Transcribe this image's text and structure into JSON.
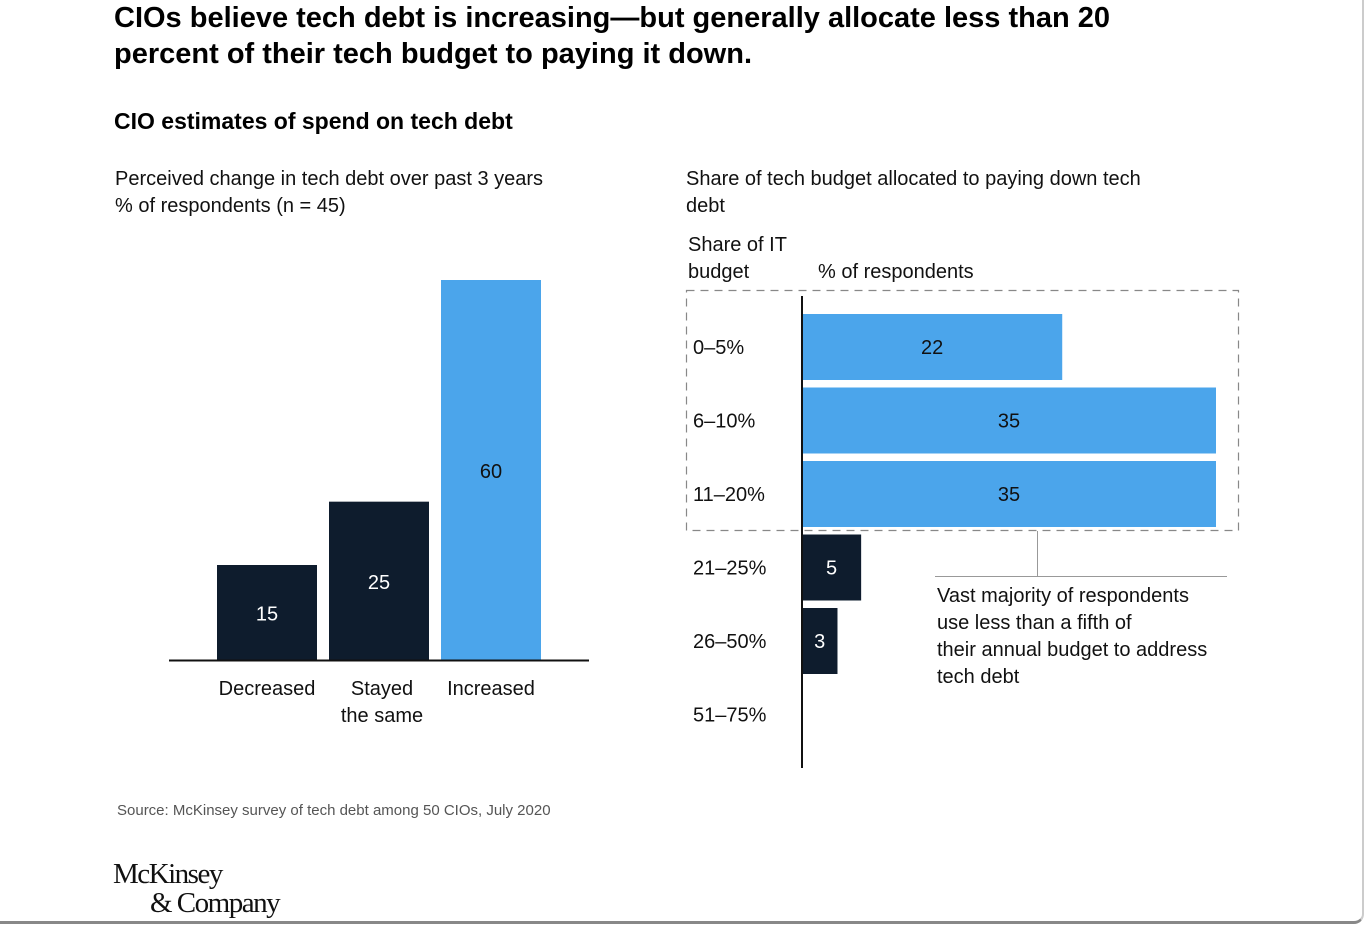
{
  "title": "CIOs believe tech debt is increasing—but generally allocate less than 20 percent of their tech budget to paying it down.",
  "subtitle": "CIO estimates of spend on tech debt",
  "source": "Source: McKinsey survey of tech debt among 50 CIOs, July 2020",
  "logo": {
    "line1": "McKinsey",
    "line2": "& Company"
  },
  "colors": {
    "blue": "#4ba5eb",
    "navy": "#0e1c2d"
  },
  "chart_data": [
    {
      "type": "bar",
      "title": "Perceived change in tech debt over past 3 years",
      "ylabel": "% of respondents (n = 45)",
      "categories": [
        "Decreased",
        "Stayed the same",
        "Increased"
      ],
      "category_lines": [
        [
          "Decreased"
        ],
        [
          "Stayed",
          "the same"
        ],
        [
          "Increased"
        ]
      ],
      "values": [
        15,
        25,
        60
      ],
      "bar_colors": [
        "navy",
        "navy",
        "blue"
      ],
      "ylim": [
        0,
        60
      ],
      "grid": false
    },
    {
      "type": "bar",
      "orientation": "horizontal",
      "title": "Share of tech budget allocated to paying down tech debt",
      "ylabel": "Share of IT budget",
      "xlabel": "% of respondents",
      "categories": [
        "0–5%",
        "6–10%",
        "11–20%",
        "21–25%",
        "26–50%",
        "51–75%"
      ],
      "values": [
        22,
        35,
        35,
        5,
        3,
        0
      ],
      "bar_colors": [
        "blue",
        "blue",
        "blue",
        "navy",
        "navy",
        "navy"
      ],
      "xlim": [
        0,
        35
      ],
      "grid": false,
      "annotation": "Vast majority of respondents use less than a fifth of their annual budget to address tech debt",
      "annotation_lines": [
        "Vast majority of respondents",
        "use less than a fifth of",
        "their annual budget to address",
        "tech debt"
      ]
    }
  ]
}
